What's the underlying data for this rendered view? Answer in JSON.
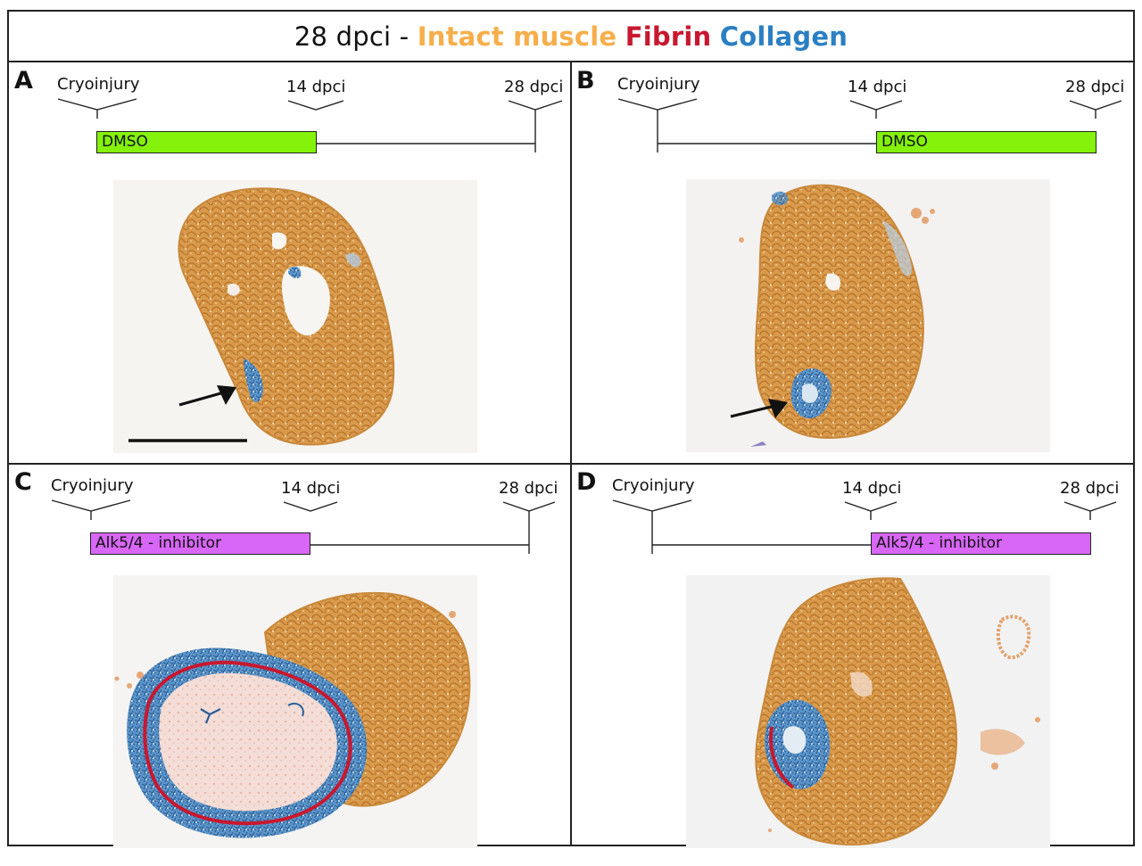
{
  "title": {
    "prefix": "28 dpci -",
    "muscle": "Intact muscle",
    "fibrin": "Fibrin",
    "collagen": "Collagen"
  },
  "legend_colors": {
    "intact_muscle": "#f7ae4a",
    "fibrin": "#c8182f",
    "collagen": "#2b7fc3",
    "dmso_bar": "#84f20a",
    "inhibitor_bar": "#d866f6"
  },
  "timeline_labels": {
    "start": "Cryoinjury",
    "mid": "14 dpci",
    "end": "28 dpci"
  },
  "panels": [
    {
      "letter": "A",
      "treatment": "DMSO",
      "window": "0-14 dpci",
      "has_arrow": true,
      "has_scalebar": true
    },
    {
      "letter": "B",
      "treatment": "DMSO",
      "window": "14-28 dpci",
      "has_arrow": true,
      "has_scalebar": false
    },
    {
      "letter": "C",
      "treatment": "Alk5/4 - inhibitor",
      "window": "0-14 dpci",
      "has_arrow": false,
      "has_scalebar": false
    },
    {
      "letter": "D",
      "treatment": "Alk5/4 - inhibitor",
      "window": "14-28 dpci",
      "has_arrow": false,
      "has_scalebar": false
    }
  ]
}
